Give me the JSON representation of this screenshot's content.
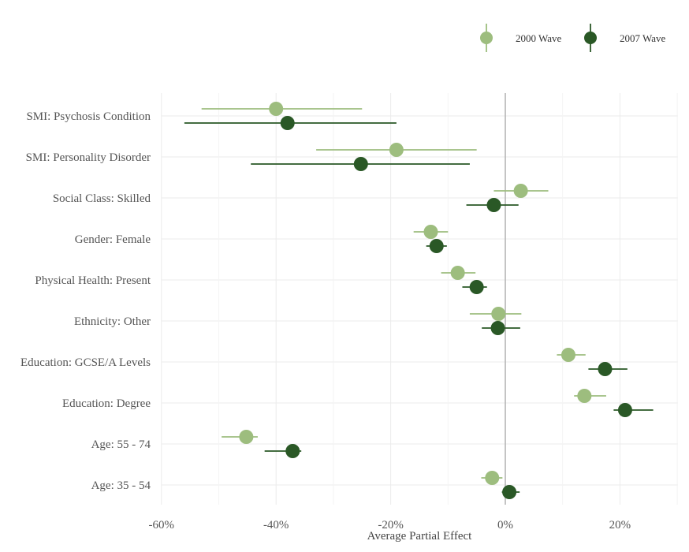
{
  "chart_data": {
    "type": "forest",
    "xlabel": "Average Partial Effect",
    "xlim": [
      -60,
      30
    ],
    "x_ticks": [
      -60,
      -40,
      -20,
      0,
      20
    ],
    "x_tick_labels": [
      "-60%",
      "-40%",
      "-20%",
      "0%",
      "20%"
    ],
    "reference_line": 0,
    "legend": {
      "position": "top-right",
      "entries": [
        "2000 Wave",
        "2007 Wave"
      ]
    },
    "categories": [
      "SMI: Psychosis Condition",
      "SMI: Personality Disorder",
      "Social Class: Skilled",
      "Gender: Female",
      "Physical Health: Present",
      "Ethnicity: Other",
      "Education: GCSE/A Levels",
      "Education: Degree",
      "Age: 55 - 74",
      "Age: 35 - 54"
    ],
    "series": [
      {
        "name": "2000 Wave",
        "color": "#9dbd7e",
        "points": [
          {
            "value": -40,
            "low": -53,
            "high": -25
          },
          {
            "value": -19,
            "low": -33,
            "high": -5
          },
          {
            "value": 2.7,
            "low": -2,
            "high": 7.5
          },
          {
            "value": -13,
            "low": -16,
            "high": -10
          },
          {
            "value": -8.3,
            "low": -11.2,
            "high": -5.2
          },
          {
            "value": -1.2,
            "low": -6.2,
            "high": 2.8
          },
          {
            "value": 11,
            "low": 9,
            "high": 14
          },
          {
            "value": 13.8,
            "low": 12,
            "high": 17.6
          },
          {
            "value": -45.2,
            "low": -49.5,
            "high": -43.2
          },
          {
            "value": -2.3,
            "low": -4.2,
            "high": -0.5
          }
        ]
      },
      {
        "name": "2007 Wave",
        "color": "#2a5826",
        "points": [
          {
            "value": -38,
            "low": -56,
            "high": -19
          },
          {
            "value": -25.2,
            "low": -44.4,
            "high": -6.2
          },
          {
            "value": -2,
            "low": -6.8,
            "high": 2.3
          },
          {
            "value": -12,
            "low": -13.8,
            "high": -10.2
          },
          {
            "value": -5,
            "low": -7.5,
            "high": -3.2
          },
          {
            "value": -1.3,
            "low": -4.1,
            "high": 2.6
          },
          {
            "value": 17.4,
            "low": 14.5,
            "high": 21.3
          },
          {
            "value": 20.9,
            "low": 18.9,
            "high": 25.8
          },
          {
            "value": -37.1,
            "low": -42,
            "high": -35.6
          },
          {
            "value": 0.7,
            "low": -0.6,
            "high": 2.5
          }
        ]
      }
    ]
  }
}
